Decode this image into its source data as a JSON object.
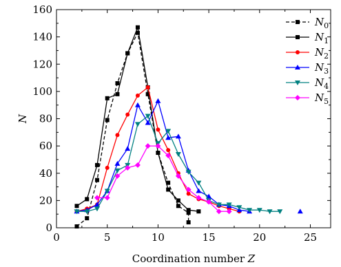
{
  "chart_data": {
    "type": "line",
    "xlabel": "Coordination number Z",
    "ylabel": "N",
    "xlim": [
      0,
      27
    ],
    "ylim": [
      0,
      160
    ],
    "xticks": [
      0,
      5,
      10,
      15,
      20,
      25
    ],
    "yticks": [
      0,
      20,
      40,
      60,
      80,
      100,
      120,
      140,
      160
    ],
    "grid": false,
    "legend_position": "top-right",
    "series": [
      {
        "name": "N0",
        "base": "N",
        "sub": "0",
        "color": "#000000",
        "dashed": true,
        "marker": "square",
        "points": [
          [
            2,
            1
          ],
          [
            3,
            7
          ],
          [
            4,
            35
          ],
          [
            5,
            79
          ],
          [
            6,
            106
          ],
          [
            7,
            128
          ],
          [
            8,
            143
          ],
          [
            9,
            98
          ],
          [
            10,
            55
          ],
          [
            11,
            33
          ],
          [
            12,
            16
          ],
          [
            13,
            11
          ],
          [
            13,
            4
          ]
        ]
      },
      {
        "name": "N1",
        "base": "N",
        "sub": "1",
        "color": "#000000",
        "dashed": false,
        "marker": "square",
        "points": [
          [
            2,
            16
          ],
          [
            3,
            21
          ],
          [
            4,
            46
          ],
          [
            5,
            95
          ],
          [
            6,
            98
          ],
          [
            7,
            128
          ],
          [
            8,
            147
          ],
          [
            9,
            103
          ],
          [
            10,
            55
          ],
          [
            11,
            28
          ],
          [
            12,
            20
          ],
          [
            13,
            13
          ],
          [
            14,
            12
          ]
        ]
      },
      {
        "name": "N2",
        "base": "N",
        "sub": "2",
        "color": "#ff0000",
        "dashed": false,
        "marker": "circle",
        "points": [
          [
            2,
            12
          ],
          [
            3,
            14
          ],
          [
            4,
            17
          ],
          [
            5,
            44
          ],
          [
            6,
            68
          ],
          [
            7,
            83
          ],
          [
            8,
            97
          ],
          [
            9,
            103
          ],
          [
            10,
            72
          ],
          [
            11,
            57
          ],
          [
            12,
            40
          ],
          [
            13,
            25
          ],
          [
            14,
            21
          ],
          [
            15,
            19
          ],
          [
            16,
            16
          ],
          [
            17,
            14
          ],
          [
            18,
            12
          ]
        ]
      },
      {
        "name": "N3",
        "base": "N",
        "sub": "3",
        "color": "#0000ff",
        "dashed": false,
        "marker": "triangle-up",
        "points": [
          [
            2,
            12
          ],
          [
            3,
            13
          ],
          [
            4,
            17
          ],
          [
            5,
            27
          ],
          [
            6,
            47
          ],
          [
            7,
            58
          ],
          [
            8,
            90
          ],
          [
            9,
            77
          ],
          [
            10,
            93
          ],
          [
            11,
            66
          ],
          [
            12,
            67
          ],
          [
            13,
            42
          ],
          [
            14,
            27
          ],
          [
            15,
            23
          ],
          [
            16,
            17
          ],
          [
            17,
            16
          ],
          [
            18,
            13
          ],
          [
            19,
            12
          ]
        ]
      },
      {
        "name": "N4",
        "base": "N",
        "sub": "4",
        "color": "#008080",
        "dashed": false,
        "marker": "triangle-down",
        "points": [
          [
            2,
            12
          ],
          [
            3,
            12
          ],
          [
            4,
            14
          ],
          [
            5,
            27
          ],
          [
            6,
            42
          ],
          [
            7,
            46
          ],
          [
            8,
            76
          ],
          [
            9,
            82
          ],
          [
            10,
            62
          ],
          [
            11,
            71
          ],
          [
            12,
            54
          ],
          [
            13,
            41
          ],
          [
            14,
            33
          ],
          [
            15,
            20
          ],
          [
            16,
            17
          ],
          [
            17,
            17
          ],
          [
            18,
            15
          ],
          [
            19,
            13
          ],
          [
            20,
            13
          ],
          [
            21,
            12
          ],
          [
            22,
            12
          ]
        ]
      },
      {
        "name": "N5",
        "base": "N",
        "sub": "5",
        "color": "#ff00ff",
        "dashed": false,
        "marker": "diamond",
        "points": [
          [
            4,
            22
          ],
          [
            5,
            22
          ],
          [
            6,
            38
          ],
          [
            7,
            44
          ],
          [
            8,
            46
          ],
          [
            9,
            60
          ],
          [
            10,
            60
          ],
          [
            11,
            53
          ],
          [
            12,
            38
          ],
          [
            13,
            28
          ],
          [
            14,
            22
          ],
          [
            15,
            19
          ],
          [
            16,
            12
          ],
          [
            17,
            12
          ]
        ]
      }
    ],
    "extra_points": [
      {
        "series": "N3",
        "x": 24,
        "y": 12,
        "color": "#0000ff",
        "marker": "triangle-up"
      }
    ]
  }
}
